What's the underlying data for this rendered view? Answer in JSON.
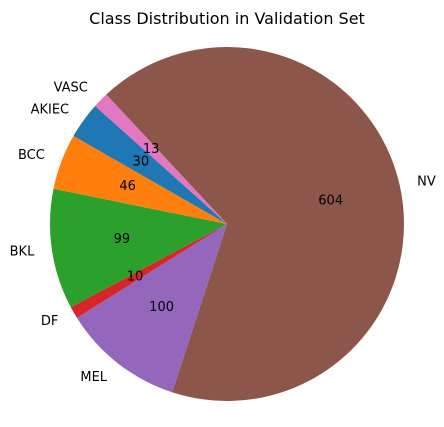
{
  "chart_data": {
    "type": "pie",
    "title": "Class Distribution in Validation Set",
    "categories": [
      "NV",
      "MEL",
      "DF",
      "BKL",
      "BCC",
      "AKIEC",
      "VASC"
    ],
    "values": [
      604,
      100,
      10,
      99,
      46,
      30,
      13
    ],
    "colors": [
      "#8c564b",
      "#9467bd",
      "#d62728",
      "#2ca02c",
      "#ff7f0e",
      "#1f77b4",
      "#e377c2"
    ],
    "start_angle_deg": 133,
    "direction": "clockwise",
    "value_labels_shown": true
  }
}
